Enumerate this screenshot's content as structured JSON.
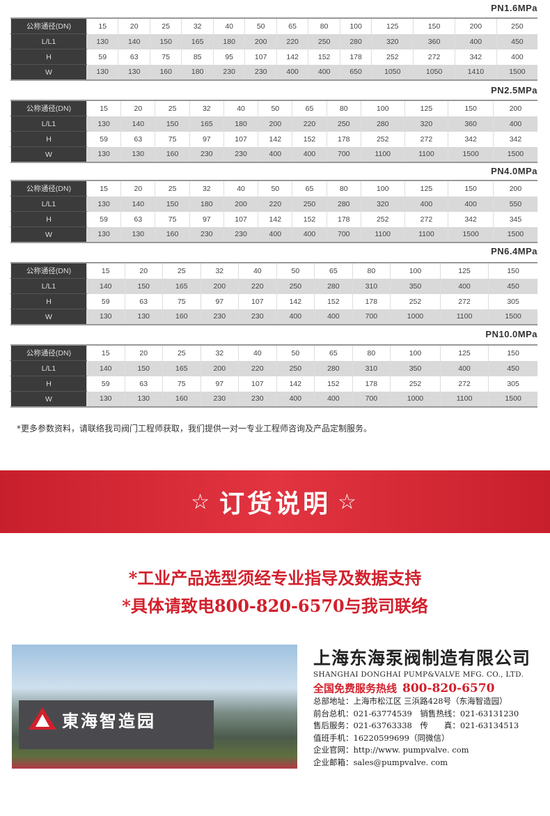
{
  "tables": [
    {
      "title": "PN1.6MPa",
      "rows": [
        {
          "label": "公称通径(DN)",
          "values": [
            "15",
            "20",
            "25",
            "32",
            "40",
            "50",
            "65",
            "80",
            "100",
            "125",
            "150",
            "200",
            "250"
          ]
        },
        {
          "label": "L/L1",
          "values": [
            "130",
            "140",
            "150",
            "165",
            "180",
            "200",
            "220",
            "250",
            "280",
            "320",
            "360",
            "400",
            "450"
          ]
        },
        {
          "label": "H",
          "values": [
            "59",
            "63",
            "75",
            "85",
            "95",
            "107",
            "142",
            "152",
            "178",
            "252",
            "272",
            "342",
            "400"
          ]
        },
        {
          "label": "W",
          "values": [
            "130",
            "130",
            "160",
            "180",
            "230",
            "230",
            "400",
            "400",
            "650",
            "1050",
            "1050",
            "1410",
            "1500"
          ]
        }
      ]
    },
    {
      "title": "PN2.5MPa",
      "rows": [
        {
          "label": "公称通径(DN)",
          "values": [
            "15",
            "20",
            "25",
            "32",
            "40",
            "50",
            "65",
            "80",
            "100",
            "125",
            "150",
            "200"
          ]
        },
        {
          "label": "L/L1",
          "values": [
            "130",
            "140",
            "150",
            "165",
            "180",
            "200",
            "220",
            "250",
            "280",
            "320",
            "360",
            "400"
          ]
        },
        {
          "label": "H",
          "values": [
            "59",
            "63",
            "75",
            "97",
            "107",
            "142",
            "152",
            "178",
            "252",
            "272",
            "342",
            "342"
          ]
        },
        {
          "label": "W",
          "values": [
            "130",
            "130",
            "160",
            "230",
            "230",
            "400",
            "400",
            "700",
            "1100",
            "1100",
            "1500",
            "1500"
          ]
        }
      ]
    },
    {
      "title": "PN4.0MPa",
      "rows": [
        {
          "label": "公称通径(DN)",
          "values": [
            "15",
            "20",
            "25",
            "32",
            "40",
            "50",
            "65",
            "80",
            "100",
            "125",
            "150",
            "200"
          ]
        },
        {
          "label": "L/L1",
          "values": [
            "130",
            "140",
            "150",
            "180",
            "200",
            "220",
            "250",
            "280",
            "320",
            "400",
            "400",
            "550"
          ]
        },
        {
          "label": "H",
          "values": [
            "59",
            "63",
            "75",
            "97",
            "107",
            "142",
            "152",
            "178",
            "252",
            "272",
            "342",
            "345"
          ]
        },
        {
          "label": "W",
          "values": [
            "130",
            "130",
            "160",
            "230",
            "230",
            "400",
            "400",
            "700",
            "1100",
            "1100",
            "1500",
            "1500"
          ]
        }
      ]
    },
    {
      "title": "PN6.4MPa",
      "rows": [
        {
          "label": "公称通径(DN)",
          "values": [
            "15",
            "20",
            "25",
            "32",
            "40",
            "50",
            "65",
            "80",
            "100",
            "125",
            "150"
          ]
        },
        {
          "label": "L/L1",
          "values": [
            "140",
            "150",
            "165",
            "200",
            "220",
            "250",
            "280",
            "310",
            "350",
            "400",
            "450"
          ]
        },
        {
          "label": "H",
          "values": [
            "59",
            "63",
            "75",
            "97",
            "107",
            "142",
            "152",
            "178",
            "252",
            "272",
            "305"
          ]
        },
        {
          "label": "W",
          "values": [
            "130",
            "130",
            "160",
            "230",
            "230",
            "400",
            "400",
            "700",
            "1000",
            "1100",
            "1500"
          ]
        }
      ]
    },
    {
      "title": "PN10.0MPa",
      "rows": [
        {
          "label": "公称通径(DN)",
          "values": [
            "15",
            "20",
            "25",
            "32",
            "40",
            "50",
            "65",
            "80",
            "100",
            "125",
            "150"
          ]
        },
        {
          "label": "L/L1",
          "values": [
            "140",
            "150",
            "165",
            "200",
            "220",
            "250",
            "280",
            "310",
            "350",
            "400",
            "450"
          ]
        },
        {
          "label": "H",
          "values": [
            "59",
            "63",
            "75",
            "97",
            "107",
            "142",
            "152",
            "178",
            "252",
            "272",
            "305"
          ]
        },
        {
          "label": "W",
          "values": [
            "130",
            "130",
            "160",
            "230",
            "230",
            "400",
            "400",
            "700",
            "1000",
            "1100",
            "1500"
          ]
        }
      ]
    }
  ],
  "note": "*更多参数资料，请联络我司阀门工程师获取，我们提供一对一专业工程师咨询及产品定制服务。",
  "banner": {
    "title": "订货说明",
    "star": "☆"
  },
  "red_lines": [
    "*工业产品选型须经专业指导及数据支持",
    "*具体请致电800-820-6570与我司联络"
  ],
  "photo": {
    "sign": "東海智造园"
  },
  "company": {
    "name_cn": "上海东海泵阀制造有限公司",
    "name_en": "SHANGHAI DONGHAI PUMP&VALVE MFG. CO., LTD.",
    "hotline_label": "全国免费服务热线",
    "hotline": "800-820-6570",
    "lines": [
      "总部地址：上海市松江区 三浜路428号（东海智造园）",
      "前台总机：021-63774539　销售热线：021-63131230",
      "售后服务：021-63763338　传　　真：021-63134513",
      "值班手机：16220599699（同微信）",
      "企业官网：http://www. pumpvalve. com",
      "企业邮箱：sales@pumpvalve. com"
    ]
  },
  "colors": {
    "accent": "#d2202c",
    "header_cell": "#3b3b3b"
  }
}
